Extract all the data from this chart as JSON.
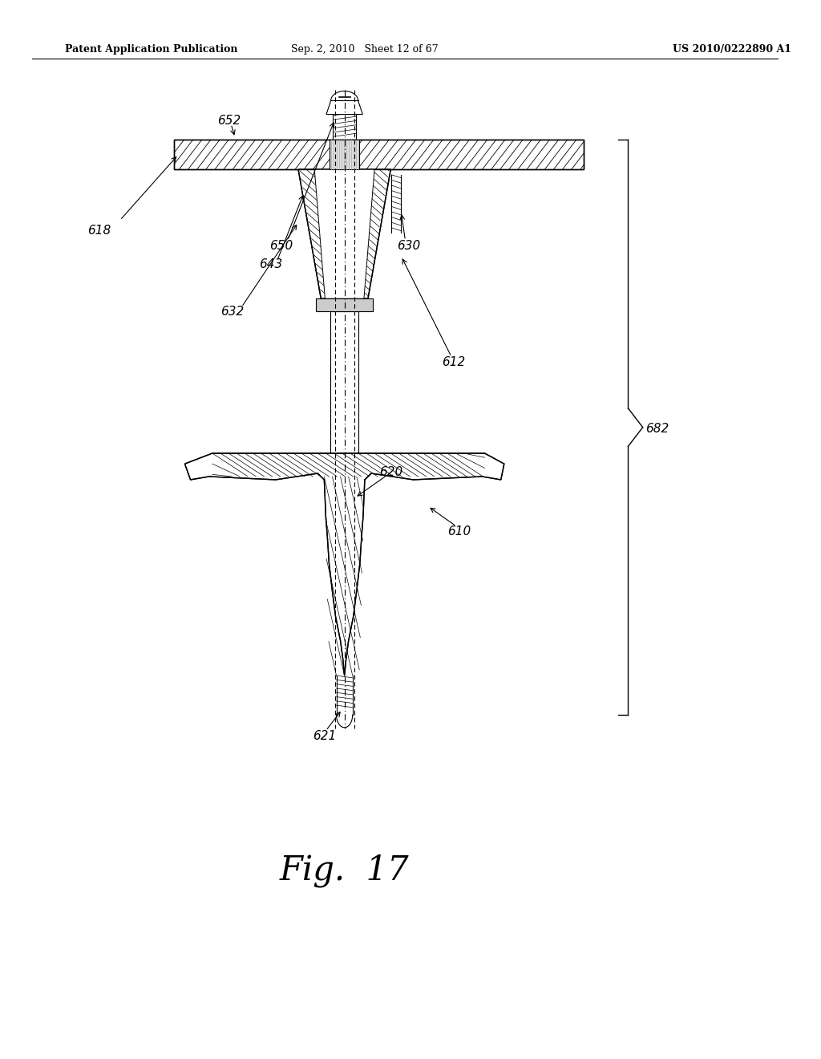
{
  "header_left": "Patent Application Publication",
  "header_mid": "Sep. 2, 2010   Sheet 12 of 67",
  "header_right": "US 2010/0222890 A1",
  "fig_label": "Fig.  17",
  "bg_color": "#ffffff",
  "line_color": "#000000"
}
